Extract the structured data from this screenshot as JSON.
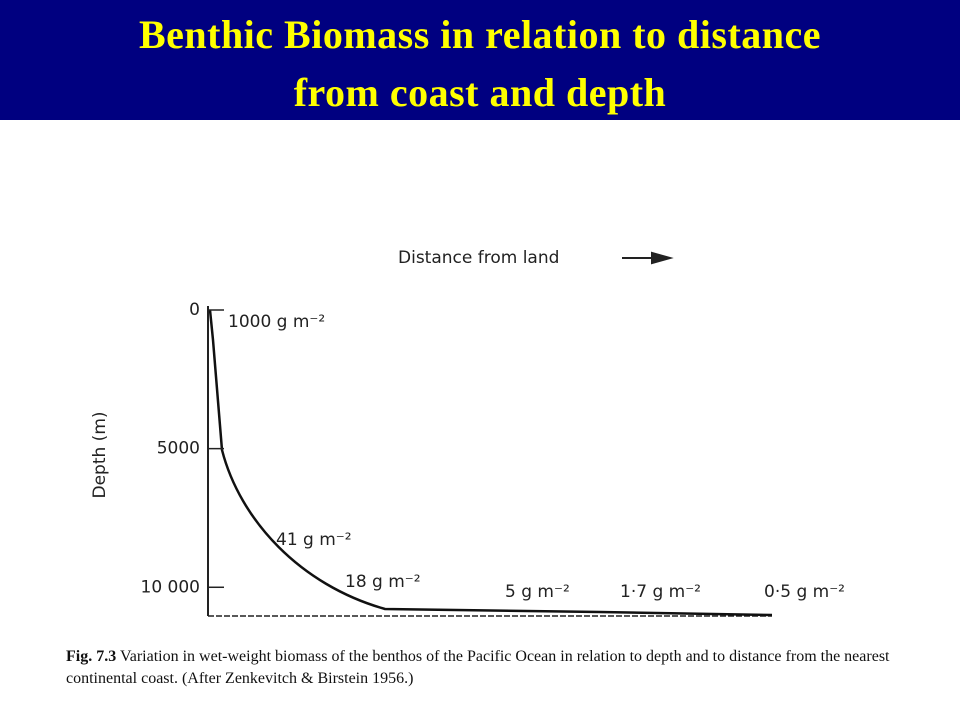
{
  "chart_data": {
    "type": "line",
    "title": "Benthic Biomass in relation to distance from coast and depth",
    "xlabel": "Distance from land",
    "ylabel": "Depth (m)",
    "ylim": [
      0,
      11000
    ],
    "yticks": [
      0,
      5000,
      {
        "value": 10000,
        "label": "10 000"
      }
    ],
    "annotations": [
      "1000 g m⁻²",
      "41 g m⁻²",
      "18 g m⁻²",
      "5 g m⁻²",
      "1·7 g m⁻²",
      "0·5 g m⁻²"
    ],
    "caption_label": "Fig. 7.3",
    "caption": "Variation in wet-weight biomass of the benthos of the Pacific Ocean in relation to depth and to distance from the nearest continental coast. (After Zenkevitch & Birstein 1956.)"
  }
}
